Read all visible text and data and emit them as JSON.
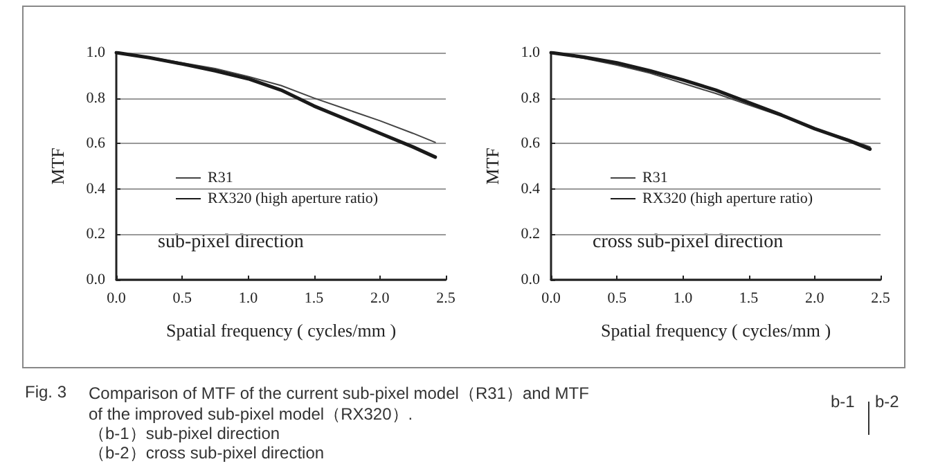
{
  "chart_data": [
    {
      "type": "line",
      "xlabel": "Spatial frequency ( cycles/mm )",
      "ylabel": "MTF",
      "annotations": [
        "sub-pixel direction"
      ],
      "xlim": [
        0,
        2.5
      ],
      "xticks": [
        {
          "value": 0,
          "label": "0.0"
        },
        {
          "value": 0.5,
          "label": "0.5"
        },
        {
          "value": 1,
          "label": "1.0"
        },
        {
          "value": 1.5,
          "label": "1.5"
        },
        {
          "value": 2,
          "label": "2.0"
        },
        {
          "value": 2.5,
          "label": "2.5"
        }
      ],
      "ylim": [
        0,
        1
      ],
      "yticks": [
        {
          "value": 0,
          "label": "0.0"
        },
        {
          "value": 0.2,
          "label": "0.2"
        },
        {
          "value": 0.4,
          "label": "0.4"
        },
        {
          "value": 0.6,
          "label": "0.6"
        },
        {
          "value": 0.8,
          "label": "0.8"
        },
        {
          "value": 1,
          "label": "1.0"
        }
      ],
      "grid": "y",
      "legend": "left",
      "marker": "none",
      "line_style": "solid",
      "x": [
        0,
        0.25,
        0.5,
        0.75,
        1.0,
        1.25,
        1.5,
        1.75,
        2.0,
        2.25,
        2.42
      ],
      "series": [
        {
          "name": "R31",
          "color": "#444444",
          "values": [
            1.0,
            0.98,
            0.955,
            0.93,
            0.895,
            0.855,
            0.8,
            0.75,
            0.7,
            0.645,
            0.605
          ]
        },
        {
          "name": "RX320 (high aperture ratio)",
          "color": "#1a1a1a",
          "values": [
            1.0,
            0.978,
            0.95,
            0.92,
            0.885,
            0.835,
            0.765,
            0.705,
            0.645,
            0.585,
            0.54
          ]
        }
      ]
    },
    {
      "type": "line",
      "xlabel": "Spatial frequency ( cycles/mm )",
      "ylabel": "MTF",
      "annotations": [
        "cross sub-pixel direction"
      ],
      "xlim": [
        0,
        2.5
      ],
      "xticks": [
        {
          "value": 0,
          "label": "0.0"
        },
        {
          "value": 0.5,
          "label": "0.5"
        },
        {
          "value": 1,
          "label": "1.0"
        },
        {
          "value": 1.5,
          "label": "1.5"
        },
        {
          "value": 2,
          "label": "2.0"
        },
        {
          "value": 2.5,
          "label": "2.5"
        }
      ],
      "ylim": [
        0,
        1
      ],
      "yticks": [
        {
          "value": 0,
          "label": "0.0"
        },
        {
          "value": 0.2,
          "label": "0.2"
        },
        {
          "value": 0.4,
          "label": "0.4"
        },
        {
          "value": 0.6,
          "label": "0.6"
        },
        {
          "value": 0.8,
          "label": "0.8"
        },
        {
          "value": 1,
          "label": "1.0"
        }
      ],
      "grid": "y",
      "legend": "left",
      "marker": "none",
      "line_style": "solid",
      "x": [
        0,
        0.25,
        0.5,
        0.75,
        1.0,
        1.25,
        1.5,
        1.75,
        2.0,
        2.25,
        2.42
      ],
      "series": [
        {
          "name": "R31",
          "color": "#444444",
          "values": [
            1.0,
            0.975,
            0.945,
            0.91,
            0.865,
            0.82,
            0.77,
            0.72,
            0.665,
            0.62,
            0.585
          ]
        },
        {
          "name": "RX320 (high aperture ratio)",
          "color": "#1a1a1a",
          "values": [
            1.0,
            0.98,
            0.955,
            0.92,
            0.88,
            0.835,
            0.78,
            0.725,
            0.665,
            0.615,
            0.575
          ]
        }
      ]
    },
    {
      "type": "other",
      "annotations": [
        "Fig. 3",
        "Comparison of MTF of the current sub-pixel model（R31）and MTF",
        "of the improved sub-pixel model（RX320）.",
        "（b-1）sub-pixel direction",
        "（b-2）cross sub-pixel direction",
        "b-1",
        "b-2"
      ]
    }
  ]
}
